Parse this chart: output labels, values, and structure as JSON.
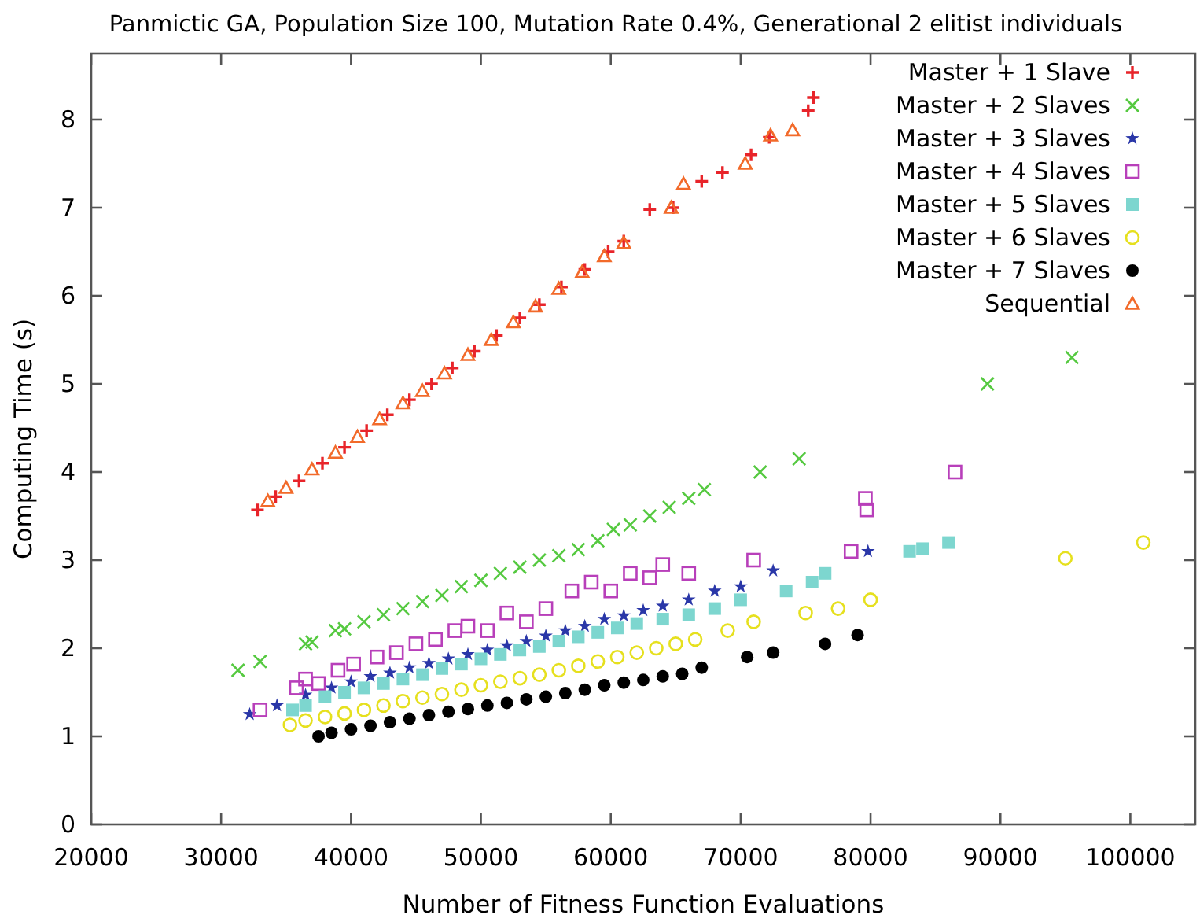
{
  "chart_data": {
    "type": "scatter",
    "title": "Panmictic GA, Population Size 100, Mutation Rate 0.4%, Generational 2 elitist individuals",
    "xlabel": "Number of Fitness Function Evaluations",
    "ylabel": "Computing Time (s)",
    "xlim": [
      20000,
      105000
    ],
    "ylim": [
      0,
      8.75
    ],
    "xticks": [
      20000,
      30000,
      40000,
      50000,
      60000,
      70000,
      80000,
      90000,
      100000
    ],
    "yticks": [
      0,
      1,
      2,
      3,
      4,
      5,
      6,
      7,
      8
    ],
    "grid": false,
    "legend": "top right",
    "series": [
      {
        "name": "Master + 1 Slave",
        "color": "#e8242a",
        "marker": "plus",
        "x": [
          32800,
          34200,
          36000,
          37800,
          39500,
          41200,
          42800,
          44500,
          46200,
          47800,
          49500,
          51200,
          53000,
          54500,
          56200,
          58000,
          59800,
          61000,
          63000,
          64800,
          67000,
          68600,
          70800,
          72200,
          75200,
          75600
        ],
        "values": [
          3.57,
          3.72,
          3.9,
          4.1,
          4.28,
          4.47,
          4.65,
          4.82,
          5.0,
          5.18,
          5.37,
          5.55,
          5.75,
          5.9,
          6.1,
          6.3,
          6.5,
          6.62,
          6.98,
          7.0,
          7.3,
          7.4,
          7.6,
          7.8,
          8.1,
          8.25
        ]
      },
      {
        "name": "Master + 2 Slaves",
        "color": "#55c940",
        "marker": "cross",
        "x": [
          31300,
          33000,
          36500,
          37000,
          38800,
          39500,
          41000,
          42500,
          44000,
          45500,
          47000,
          48500,
          50000,
          51500,
          53000,
          54500,
          56000,
          57500,
          59000,
          60200,
          61500,
          63000,
          64500,
          66000,
          67200,
          71500,
          74500,
          89000,
          95500
        ],
        "values": [
          1.75,
          1.85,
          2.05,
          2.07,
          2.2,
          2.22,
          2.3,
          2.38,
          2.45,
          2.53,
          2.6,
          2.7,
          2.77,
          2.85,
          2.92,
          3.0,
          3.05,
          3.12,
          3.22,
          3.35,
          3.4,
          3.5,
          3.6,
          3.7,
          3.8,
          4.0,
          4.15,
          5.0,
          5.3
        ]
      },
      {
        "name": "Master + 3 Slaves",
        "color": "#2a37a8",
        "marker": "star",
        "x": [
          32200,
          34300,
          36500,
          38500,
          40000,
          41500,
          43000,
          44500,
          46000,
          47500,
          49000,
          50500,
          52000,
          53500,
          55000,
          56500,
          58000,
          59500,
          61000,
          62500,
          64000,
          66000,
          68000,
          70000,
          72500,
          79800
        ],
        "values": [
          1.25,
          1.35,
          1.47,
          1.55,
          1.62,
          1.68,
          1.72,
          1.78,
          1.83,
          1.88,
          1.93,
          1.98,
          2.03,
          2.08,
          2.14,
          2.2,
          2.25,
          2.33,
          2.37,
          2.43,
          2.48,
          2.55,
          2.65,
          2.7,
          2.88,
          3.1
        ]
      },
      {
        "name": "Master + 4 Slaves",
        "color": "#b83fba",
        "marker": "square-open",
        "x": [
          33000,
          35800,
          36500,
          37500,
          39000,
          40200,
          42000,
          43500,
          45000,
          46500,
          48000,
          49000,
          50500,
          52000,
          53500,
          55000,
          57000,
          58500,
          60000,
          61500,
          63000,
          64000,
          66000,
          71000,
          78500,
          79600,
          79700,
          86500
        ],
        "values": [
          1.3,
          1.55,
          1.65,
          1.6,
          1.75,
          1.82,
          1.9,
          1.95,
          2.05,
          2.1,
          2.2,
          2.25,
          2.2,
          2.4,
          2.3,
          2.45,
          2.65,
          2.75,
          2.65,
          2.85,
          2.8,
          2.95,
          2.85,
          3.0,
          3.1,
          3.7,
          3.57,
          4.0
        ]
      },
      {
        "name": "Master + 5 Slaves",
        "color": "#7dd6cf",
        "marker": "square",
        "x": [
          35500,
          36500,
          38000,
          39500,
          41000,
          42500,
          44000,
          45500,
          47000,
          48500,
          50000,
          51500,
          53000,
          54500,
          56000,
          57500,
          59000,
          60500,
          62000,
          64000,
          66000,
          68000,
          70000,
          73500,
          75500,
          76500,
          83000,
          84000,
          86000
        ],
        "values": [
          1.3,
          1.35,
          1.45,
          1.5,
          1.55,
          1.6,
          1.65,
          1.7,
          1.77,
          1.82,
          1.88,
          1.93,
          1.98,
          2.02,
          2.08,
          2.13,
          2.18,
          2.23,
          2.28,
          2.33,
          2.38,
          2.45,
          2.55,
          2.65,
          2.75,
          2.85,
          3.1,
          3.13,
          3.2
        ]
      },
      {
        "name": "Master + 6 Slaves",
        "color": "#e6e01e",
        "marker": "circle-open",
        "x": [
          35300,
          36500,
          38000,
          39500,
          41000,
          42500,
          44000,
          45500,
          47000,
          48500,
          50000,
          51500,
          53000,
          54500,
          56000,
          57500,
          59000,
          60500,
          62000,
          63500,
          65000,
          66500,
          69000,
          71000,
          75000,
          77500,
          80000,
          95000,
          101000
        ],
        "values": [
          1.13,
          1.18,
          1.22,
          1.26,
          1.3,
          1.35,
          1.4,
          1.44,
          1.48,
          1.53,
          1.58,
          1.62,
          1.66,
          1.7,
          1.75,
          1.8,
          1.85,
          1.9,
          1.95,
          2.0,
          2.05,
          2.1,
          2.2,
          2.3,
          2.4,
          2.45,
          2.55,
          3.02,
          3.2
        ]
      },
      {
        "name": "Master + 7 Slaves",
        "color": "#000000",
        "marker": "circle",
        "x": [
          37500,
          38500,
          40000,
          41500,
          43000,
          44500,
          46000,
          47500,
          49000,
          50500,
          52000,
          53500,
          55000,
          56500,
          58000,
          59500,
          61000,
          62500,
          64000,
          65500,
          67000,
          70500,
          72500,
          76500,
          79000
        ],
        "values": [
          1.0,
          1.04,
          1.08,
          1.12,
          1.16,
          1.2,
          1.24,
          1.28,
          1.31,
          1.35,
          1.38,
          1.42,
          1.45,
          1.49,
          1.53,
          1.58,
          1.61,
          1.64,
          1.68,
          1.71,
          1.78,
          1.9,
          1.95,
          2.05,
          2.15
        ]
      },
      {
        "name": "Sequential",
        "color": "#f26a2a",
        "marker": "triangle-open",
        "x": [
          33600,
          35000,
          37000,
          38800,
          40500,
          42200,
          44000,
          45500,
          47200,
          49000,
          50800,
          52500,
          54200,
          56000,
          57800,
          59500,
          61000,
          64650,
          65600,
          70350,
          72300,
          74000
        ],
        "values": [
          3.67,
          3.82,
          4.03,
          4.22,
          4.4,
          4.6,
          4.78,
          4.92,
          5.12,
          5.33,
          5.5,
          5.7,
          5.88,
          6.08,
          6.27,
          6.45,
          6.6,
          7.0,
          7.27,
          7.5,
          7.82,
          7.88
        ]
      }
    ]
  }
}
